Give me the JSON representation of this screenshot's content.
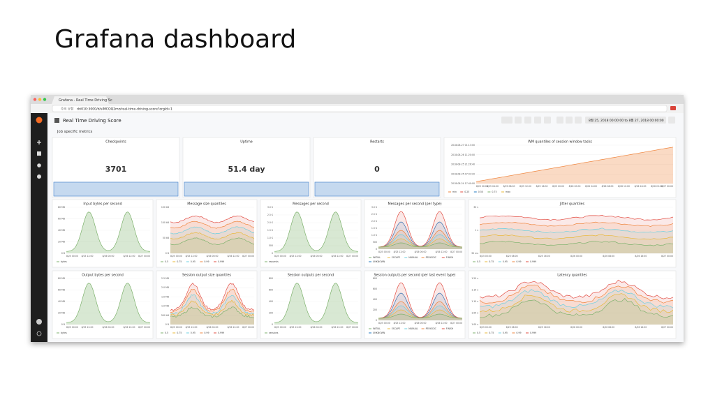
{
  "slide_title": "Grafana dashboard",
  "browser": {
    "tab": "Grafana - Real Time Driving Sc",
    "url_warning": "주의 요함",
    "url": "dri010:3000/d/sIMCQQ2mz/real-time-driving-score?orgId=1"
  },
  "dashboard": {
    "title": "Real Time Driving Score",
    "row": "Job specific metrics",
    "time_range": "8월 25, 2018 00:00:00 to 8월 27, 2018 00:00:00"
  },
  "panels": [
    {
      "title": "Checkpoints",
      "value": "3701"
    },
    {
      "title": "Uptime",
      "value": "51.4 day"
    },
    {
      "title": "Restarts",
      "value": "0"
    },
    {
      "title": "WM quantiles of session window tasks",
      "yticks": [
        "2018-08-27 01:13:00",
        "2018-08-26 11:20:00",
        "2018-08-25 21:26:40",
        "2018-08-25 07:33:20",
        "2018-08-24 17:40:00"
      ],
      "xticks": [
        "8/25 00:00",
        "8/25 04:00",
        "8/25 08:00",
        "8/25 12:00",
        "8/25 16:00",
        "8/25 20:00",
        "8/26 00:00",
        "8/26 04:00",
        "8/26 08:00",
        "8/26 12:00",
        "8/26 16:00",
        "8/26 20:00",
        "8/27 00:00"
      ],
      "legend": [
        "min",
        "0.25",
        "0.50",
        "0.75",
        "max"
      ]
    },
    {
      "title": "Input bytes per second",
      "yticks": [
        "80 MB",
        "60 MB",
        "40 MB",
        "20 MB",
        "0 B"
      ],
      "xticks": [
        "8/25 00:00",
        "8/25 12:00",
        "8/26 00:00",
        "8/26 12:00",
        "8/27 00:00"
      ],
      "legend": [
        "bytes"
      ]
    },
    {
      "title": "Message size quantiles",
      "yticks": [
        "150 kB",
        "100 kB",
        "50 kB",
        "0 B"
      ],
      "xticks": [
        "8/25 00:00",
        "8/25 12:00",
        "8/26 00:00",
        "8/26 12:00",
        "8/27 00:00"
      ],
      "legend": [
        "0.5",
        "0.75",
        "0.95",
        "0.99",
        "0.999"
      ]
    },
    {
      "title": "Messages per second",
      "yticks": [
        "3.0 K",
        "2.5 K",
        "2.0 K",
        "1.5 K",
        "1.0 K",
        "500",
        "0"
      ],
      "xticks": [
        "8/25 00:00",
        "8/25 12:00",
        "8/26 00:00",
        "8/26 12:00",
        "8/27 00:00"
      ],
      "legend": [
        "requests"
      ]
    },
    {
      "title": "Messages per second (per type)",
      "yticks": [
        "3.0 K",
        "2.5 K",
        "2.0 K",
        "1.5 K",
        "1.0 K",
        "500",
        "0"
      ],
      "xticks": [
        "8/25 00:00",
        "8/25 12:00",
        "8/26 00:00",
        "8/26 12:00",
        "8/27 00:00"
      ],
      "legend": [
        "INITIAL",
        "ESCAPE",
        "MANUAL",
        "PERIODIC",
        "FINISH",
        "UNKNOWN"
      ]
    },
    {
      "title": "Jitter quantiles",
      "yticks": [
        "30 s",
        "1 s",
        "30 ms"
      ],
      "xticks": [
        "8/25 00:00",
        "8/25 08:00",
        "8/25 16:00",
        "8/26 00:00",
        "8/26 08:00",
        "8/26 16:00",
        "8/27 00:00"
      ],
      "legend": [
        "0.5",
        "0.75",
        "0.95",
        "0.99",
        "0.999"
      ]
    },
    {
      "title": "Output bytes per second",
      "yticks": [
        "80 MB",
        "60 MB",
        "40 MB",
        "20 MB",
        "0 B"
      ],
      "xticks": [
        "8/25 00:00",
        "8/25 12:00",
        "8/26 00:00",
        "8/26 12:00",
        "8/27 00:00"
      ],
      "legend": [
        "bytes"
      ]
    },
    {
      "title": "Session output size quantiles",
      "yticks": [
        "2.5 MB",
        "2.0 MB",
        "1.5 MB",
        "1.0 MB",
        "500 kB",
        "0 B"
      ],
      "xticks": [
        "8/25 00:00",
        "8/25 12:00",
        "8/26 00:00",
        "8/26 12:00",
        "8/27 00:00"
      ],
      "legend": [
        "0.5",
        "0.75",
        "0.95",
        "0.99",
        "0.999"
      ]
    },
    {
      "title": "Session outputs per second",
      "yticks": [
        "800",
        "600",
        "400",
        "200",
        "0"
      ],
      "xticks": [
        "8/25 00:00",
        "8/25 12:00",
        "8/26 00:00",
        "8/26 12:00",
        "8/27 00:00"
      ],
      "legend": [
        "sessions"
      ]
    },
    {
      "title": "Session outputs per second (per last event type)",
      "yticks": [
        "800",
        "600",
        "400",
        "200",
        "0"
      ],
      "xticks": [
        "8/25 00:00",
        "8/25 12:00",
        "8/26 00:00",
        "8/26 12:00",
        "8/27 00:00"
      ],
      "legend": [
        "INITIAL",
        "ESCAPE",
        "MANUAL",
        "PERIODIC",
        "FINISH",
        "UNKNOWN"
      ]
    },
    {
      "title": "Latency quantiles",
      "yticks": [
        "1.20 s",
        "1.15 s",
        "1.10 s",
        "1.05 s",
        "1.00 s"
      ],
      "xticks": [
        "8/25 00:00",
        "8/25 08:00",
        "8/25 16:00",
        "8/26 00:00",
        "8/26 08:00",
        "8/26 16:00",
        "8/27 00:00"
      ],
      "legend": [
        "0.5",
        "0.75",
        "0.95",
        "0.99",
        "0.999"
      ]
    }
  ]
}
